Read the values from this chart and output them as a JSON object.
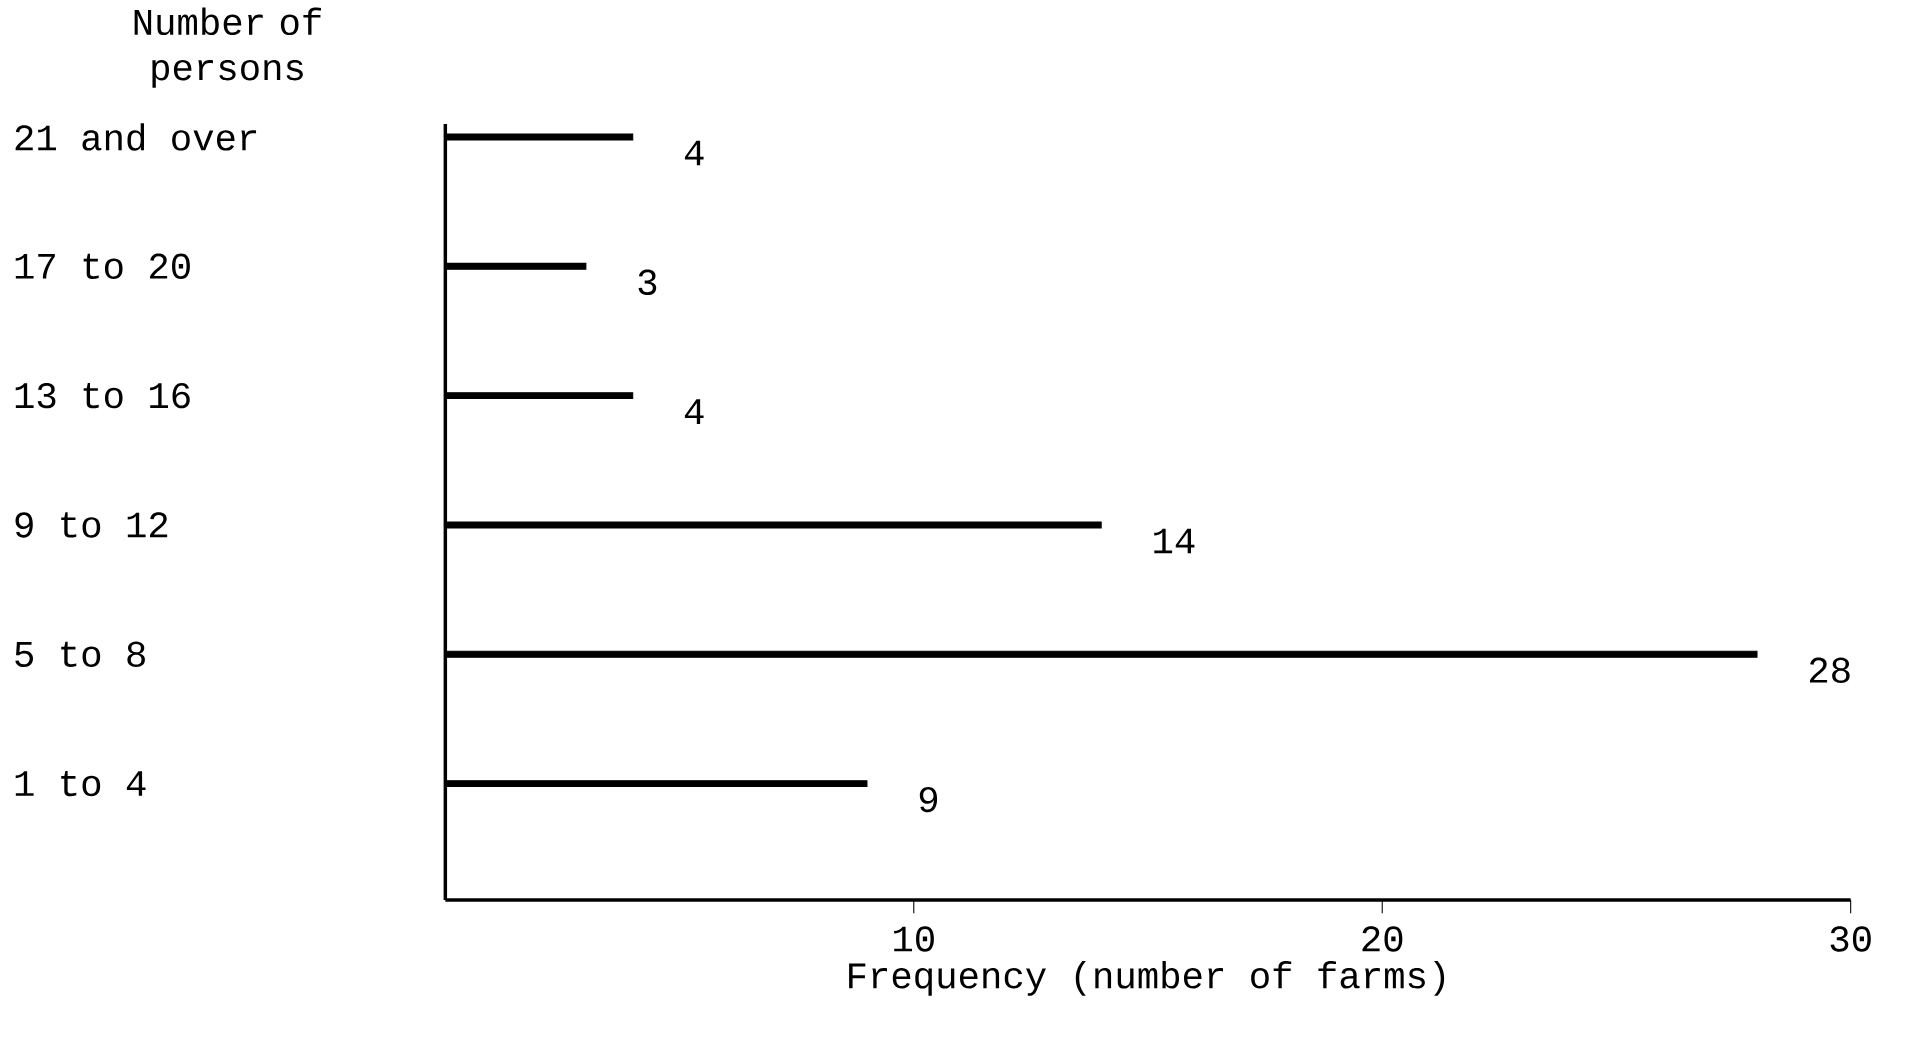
{
  "chart_data": {
    "type": "bar",
    "orientation": "horizontal",
    "ylabel": "Number of persons",
    "xlabel": "Frequency (number of farms)",
    "categories": [
      "21 and over",
      "17 to 20",
      "13 to 16",
      "9 to 12",
      "5 to 8",
      "1 to 4"
    ],
    "values": [
      4,
      3,
      4,
      14,
      28,
      9
    ],
    "color": "#000000",
    "xlim": [
      0,
      30
    ],
    "xticks": [
      10,
      20,
      30
    ],
    "data_labels": true,
    "grid": false
  }
}
